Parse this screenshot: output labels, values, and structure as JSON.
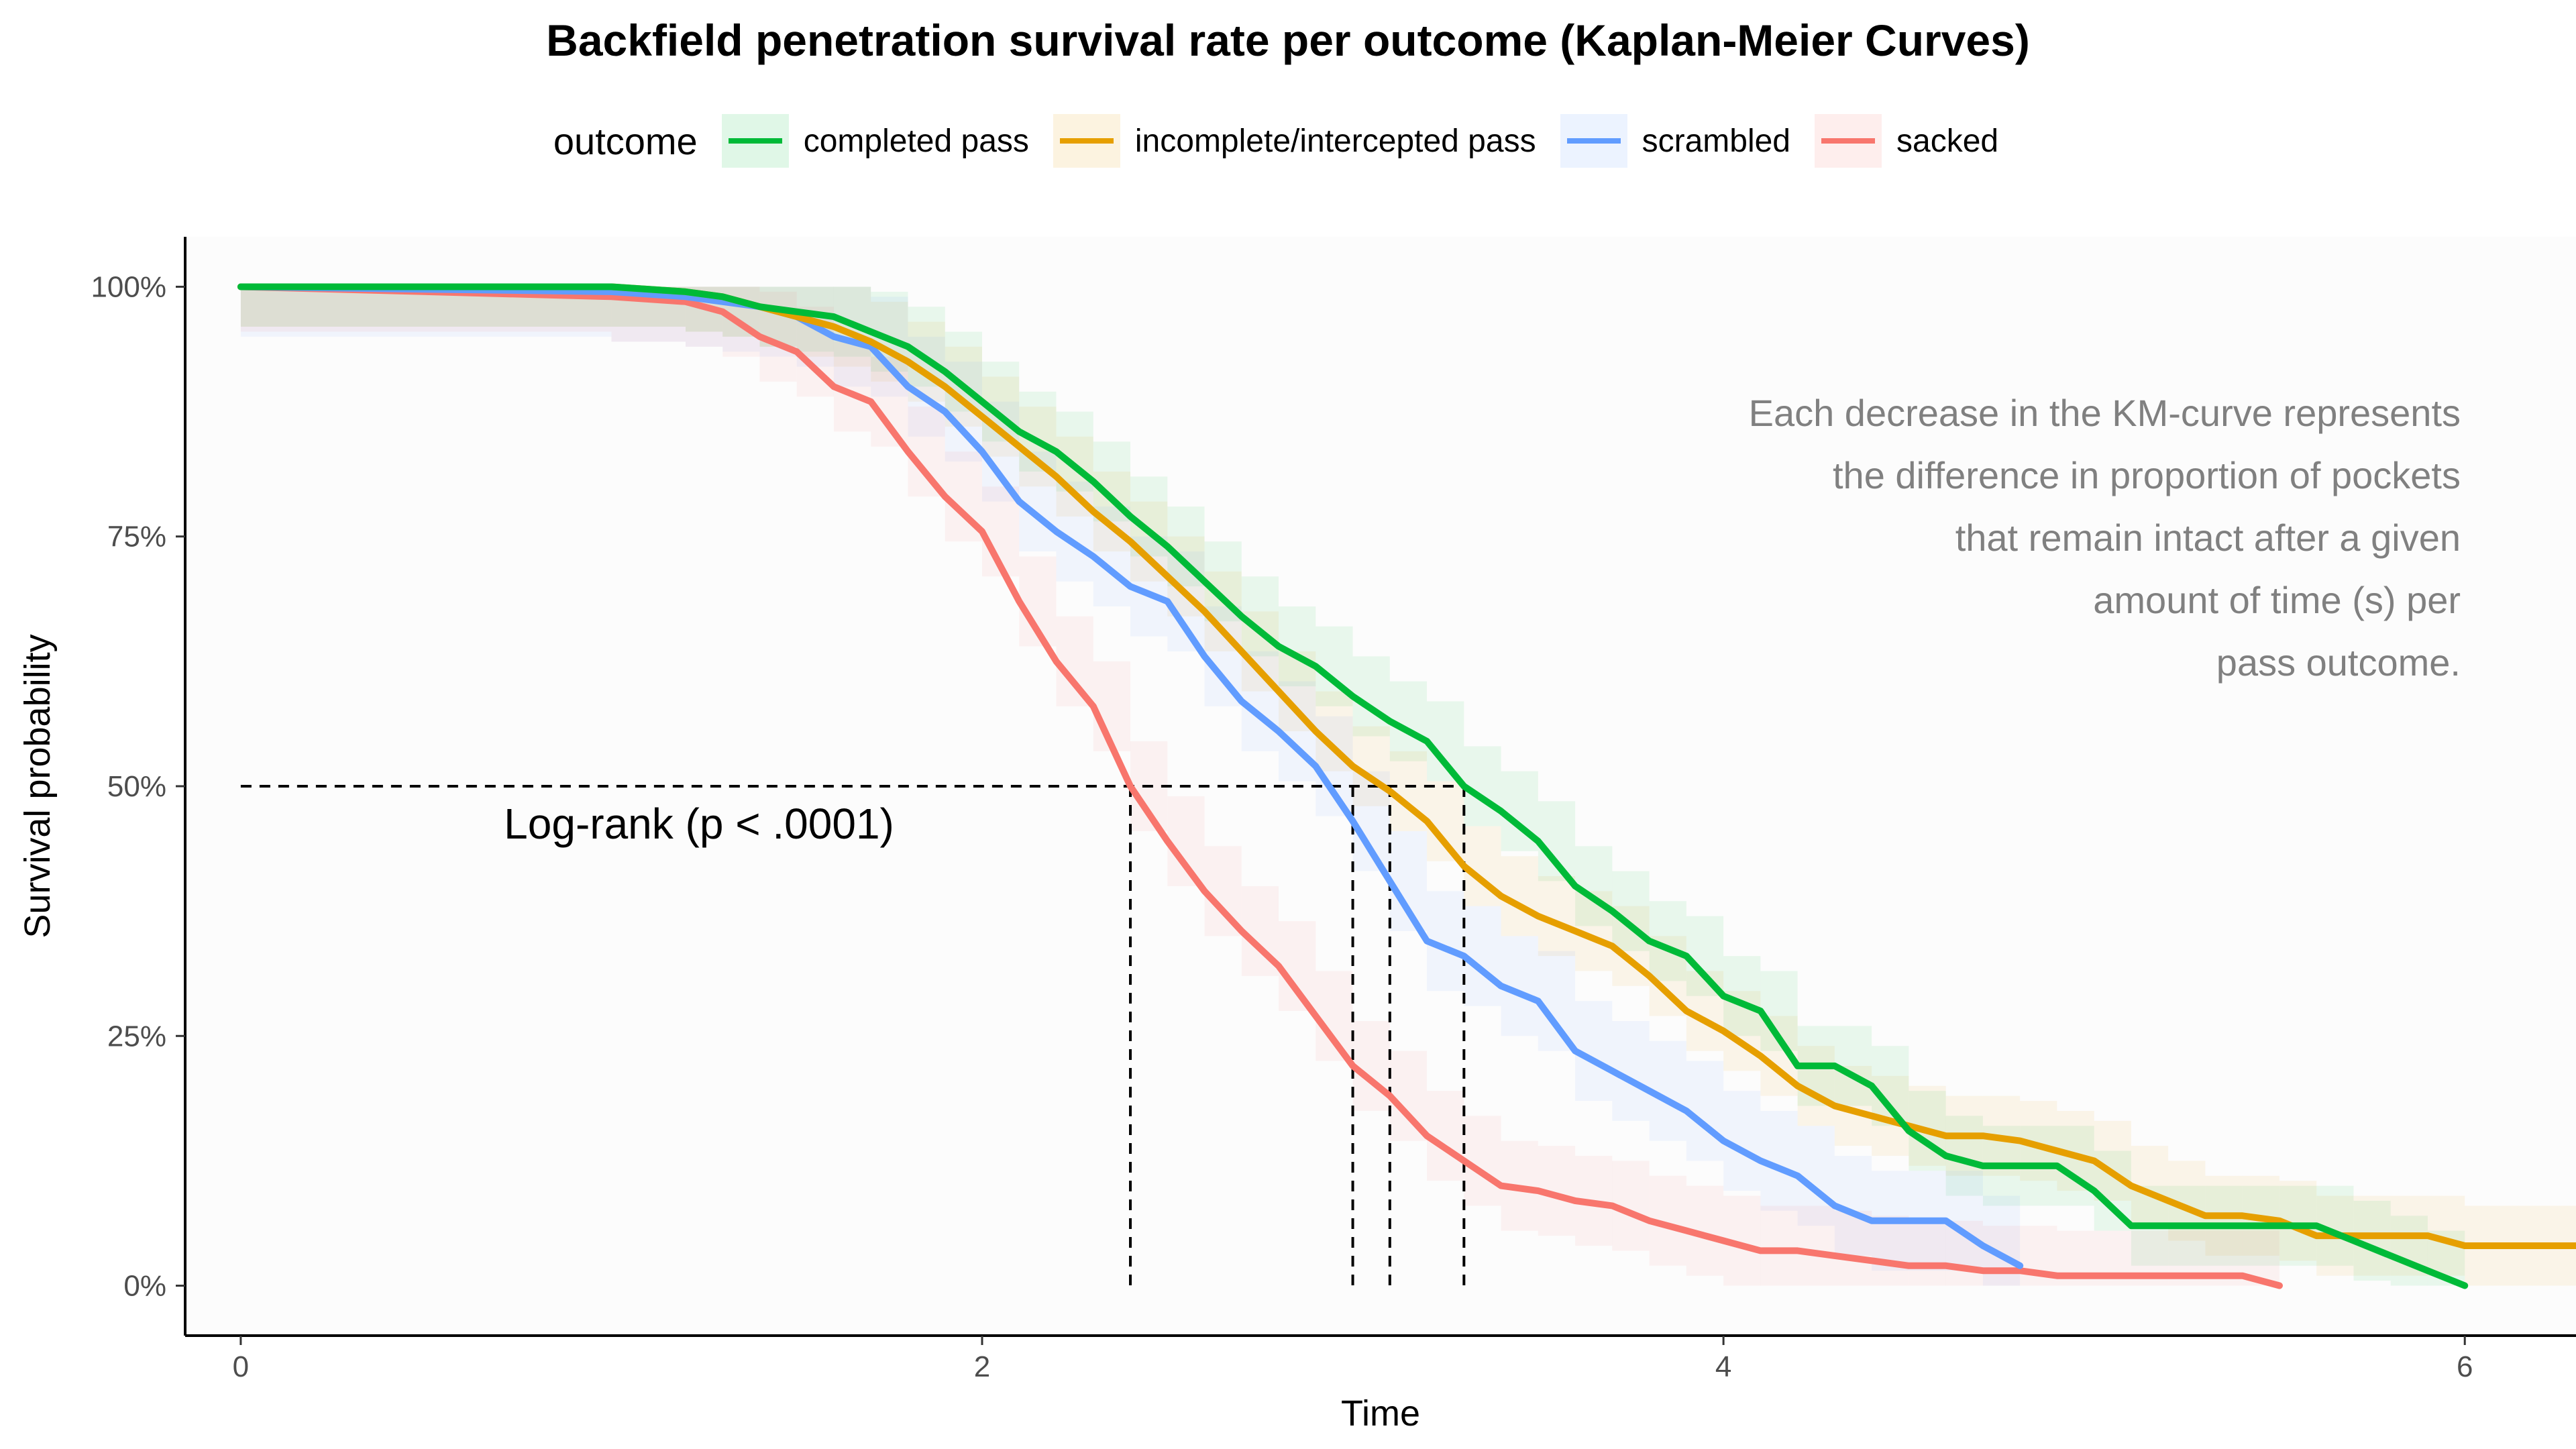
{
  "chart_data": {
    "type": "line",
    "step": true,
    "title": "Backfield penetration survival rate per outcome (Kaplan-Meier Curves)",
    "xlabel": "Time",
    "ylabel": "Survival probability",
    "xlim": [
      -0.15,
      6.3
    ],
    "ylim": [
      -0.05,
      1.05
    ],
    "x_ticks": [
      0,
      2,
      4,
      6
    ],
    "y_ticks": [
      0,
      0.25,
      0.5,
      0.75,
      1.0
    ],
    "y_tick_labels": [
      "0%",
      "25%",
      "50%",
      "75%",
      "100%"
    ],
    "grid": false,
    "legend_title": "outcome",
    "legend_position": "top",
    "annotation": [
      "Each decrease in the KM-curve represents",
      "the difference in proportion of pockets",
      "that remain intact after a given",
      "amount of time (s) per",
      "pass outcome."
    ],
    "pvalue_label": "Log-rank (p < .0001)",
    "median_line": {
      "y": 0.5,
      "medians": [
        2.4,
        3.0,
        3.1,
        3.3
      ]
    },
    "series": [
      {
        "name": "completed pass",
        "color": "#00BA38",
        "x": [
          0,
          1.0,
          1.2,
          1.3,
          1.4,
          1.5,
          1.6,
          1.7,
          1.8,
          1.9,
          2.0,
          2.1,
          2.2,
          2.3,
          2.4,
          2.5,
          2.6,
          2.7,
          2.8,
          2.9,
          3.0,
          3.1,
          3.2,
          3.3,
          3.4,
          3.5,
          3.6,
          3.7,
          3.8,
          3.9,
          4.0,
          4.1,
          4.2,
          4.3,
          4.4,
          4.5,
          4.6,
          4.7,
          4.8,
          4.9,
          5.0,
          5.1,
          5.2,
          5.3,
          5.4,
          5.5,
          5.6,
          5.7,
          5.8,
          5.9,
          6.0
        ],
        "y": [
          1.0,
          1.0,
          0.995,
          0.99,
          0.98,
          0.975,
          0.97,
          0.955,
          0.94,
          0.915,
          0.885,
          0.855,
          0.835,
          0.805,
          0.77,
          0.74,
          0.705,
          0.67,
          0.64,
          0.62,
          0.59,
          0.565,
          0.545,
          0.5,
          0.475,
          0.445,
          0.4,
          0.375,
          0.345,
          0.33,
          0.29,
          0.275,
          0.22,
          0.22,
          0.2,
          0.155,
          0.13,
          0.12,
          0.12,
          0.12,
          0.095,
          0.06,
          0.06,
          0.06,
          0.06,
          0.06,
          0.06,
          0.045,
          0.03,
          0.015,
          0.0
        ],
        "band": 0.04
      },
      {
        "name": "incomplete/intercepted pass",
        "color": "#E69F00",
        "x": [
          0,
          1.0,
          1.2,
          1.3,
          1.4,
          1.5,
          1.6,
          1.7,
          1.8,
          1.9,
          2.0,
          2.1,
          2.2,
          2.3,
          2.4,
          2.5,
          2.6,
          2.7,
          2.8,
          2.9,
          3.0,
          3.1,
          3.2,
          3.3,
          3.4,
          3.5,
          3.6,
          3.7,
          3.8,
          3.9,
          4.0,
          4.1,
          4.2,
          4.3,
          4.4,
          4.5,
          4.6,
          4.7,
          4.8,
          4.9,
          5.0,
          5.1,
          5.2,
          5.3,
          5.4,
          5.5,
          5.6,
          5.7,
          5.8,
          5.9,
          6.0,
          6.3
        ],
        "y": [
          1.0,
          1.0,
          0.995,
          0.99,
          0.98,
          0.97,
          0.96,
          0.945,
          0.925,
          0.9,
          0.87,
          0.84,
          0.81,
          0.775,
          0.745,
          0.71,
          0.675,
          0.635,
          0.595,
          0.555,
          0.52,
          0.495,
          0.465,
          0.42,
          0.39,
          0.37,
          0.355,
          0.34,
          0.31,
          0.275,
          0.255,
          0.23,
          0.2,
          0.18,
          0.17,
          0.16,
          0.15,
          0.15,
          0.145,
          0.135,
          0.125,
          0.1,
          0.085,
          0.07,
          0.07,
          0.065,
          0.05,
          0.05,
          0.05,
          0.05,
          0.04,
          0.04
        ],
        "band": 0.04
      },
      {
        "name": "scrambled",
        "color": "#619CFF",
        "x": [
          0,
          1.0,
          1.2,
          1.3,
          1.4,
          1.5,
          1.6,
          1.7,
          1.8,
          1.9,
          2.0,
          2.1,
          2.2,
          2.3,
          2.4,
          2.5,
          2.6,
          2.7,
          2.8,
          2.9,
          3.0,
          3.1,
          3.2,
          3.3,
          3.4,
          3.5,
          3.6,
          3.7,
          3.8,
          3.9,
          4.0,
          4.1,
          4.2,
          4.3,
          4.4,
          4.5,
          4.6,
          4.7,
          4.8
        ],
        "y": [
          1.0,
          0.995,
          0.99,
          0.985,
          0.98,
          0.97,
          0.95,
          0.94,
          0.9,
          0.875,
          0.835,
          0.785,
          0.755,
          0.73,
          0.7,
          0.685,
          0.63,
          0.585,
          0.555,
          0.52,
          0.465,
          0.405,
          0.345,
          0.33,
          0.3,
          0.285,
          0.235,
          0.215,
          0.195,
          0.175,
          0.145,
          0.125,
          0.11,
          0.08,
          0.065,
          0.065,
          0.065,
          0.04,
          0.02
        ],
        "band": 0.05
      },
      {
        "name": "sacked",
        "color": "#F8766D",
        "x": [
          0,
          1.0,
          1.2,
          1.3,
          1.4,
          1.5,
          1.6,
          1.7,
          1.8,
          1.9,
          2.0,
          2.1,
          2.2,
          2.3,
          2.4,
          2.5,
          2.6,
          2.7,
          2.8,
          2.9,
          3.0,
          3.1,
          3.2,
          3.3,
          3.4,
          3.5,
          3.6,
          3.7,
          3.8,
          3.9,
          4.0,
          4.1,
          4.2,
          4.3,
          4.4,
          4.5,
          4.6,
          4.7,
          4.8,
          4.9,
          5.0,
          5.1,
          5.2,
          5.3,
          5.4,
          5.5
        ],
        "y": [
          1.0,
          0.99,
          0.985,
          0.975,
          0.95,
          0.935,
          0.9,
          0.885,
          0.835,
          0.79,
          0.755,
          0.685,
          0.625,
          0.58,
          0.5,
          0.445,
          0.395,
          0.355,
          0.32,
          0.27,
          0.22,
          0.19,
          0.15,
          0.125,
          0.1,
          0.095,
          0.085,
          0.08,
          0.065,
          0.055,
          0.045,
          0.035,
          0.035,
          0.03,
          0.025,
          0.02,
          0.02,
          0.015,
          0.015,
          0.01,
          0.01,
          0.01,
          0.01,
          0.01,
          0.01,
          0.0
        ],
        "band": 0.045
      }
    ]
  }
}
